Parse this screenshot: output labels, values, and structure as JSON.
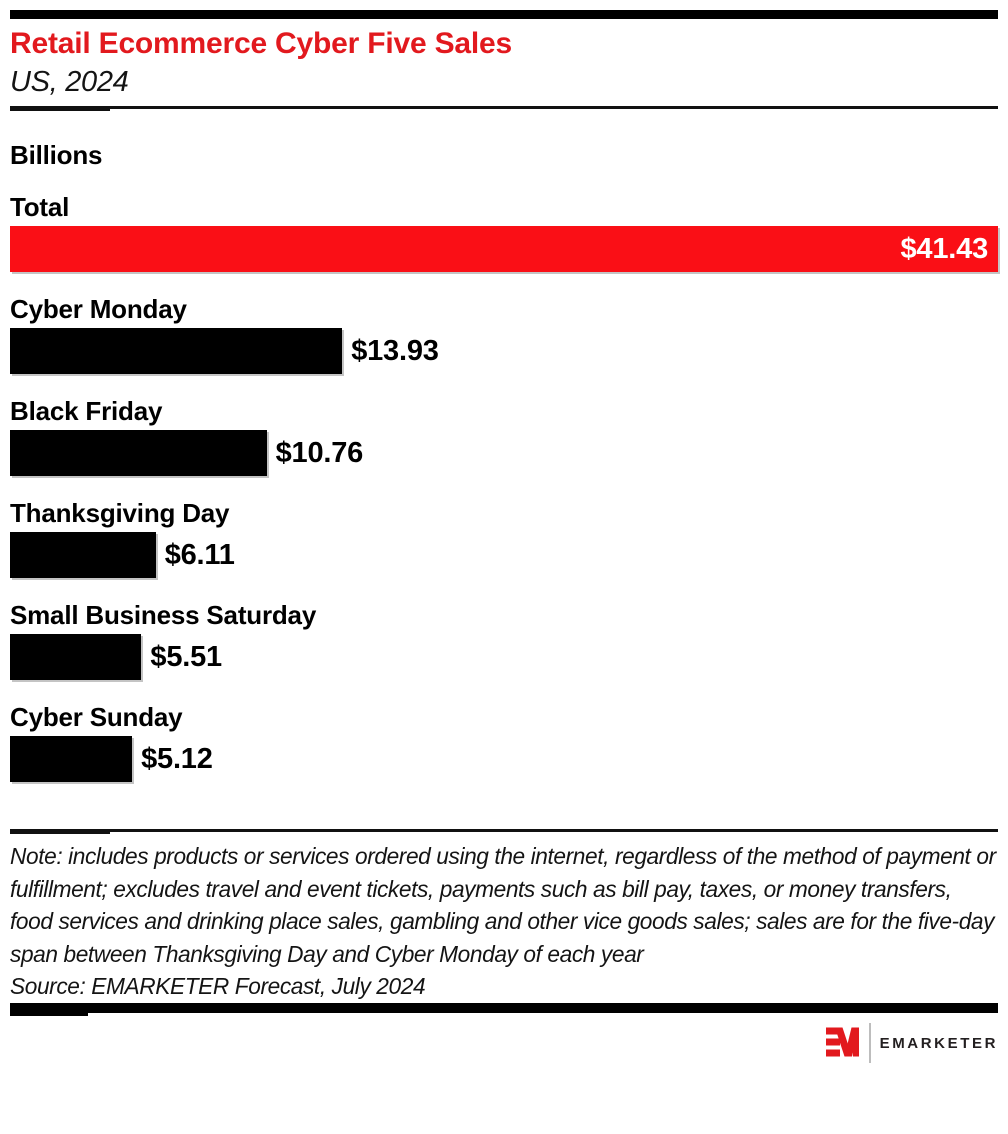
{
  "header": {
    "title": "Retail Ecommerce Cyber Five Sales",
    "subtitle": "US, 2024",
    "units_label": "Billions"
  },
  "colors": {
    "title_red": "#e2191e",
    "bar_red": "#fa0f16",
    "bar_black": "#000000"
  },
  "chart_data": {
    "type": "bar",
    "orientation": "horizontal",
    "title": "Retail Ecommerce Cyber Five Sales",
    "subtitle": "US, 2024",
    "units": "Billions",
    "xlim": [
      0,
      41.43
    ],
    "grid": false,
    "legend": false,
    "categories": [
      "Total",
      "Cyber Monday",
      "Black Friday",
      "Thanksgiving Day",
      "Small Business Saturday",
      "Cyber Sunday"
    ],
    "values": [
      41.43,
      13.93,
      10.76,
      6.11,
      5.51,
      5.12
    ],
    "value_labels": [
      "$41.43",
      "$13.93",
      "$10.76",
      "$6.11",
      "$5.51",
      "$5.12"
    ],
    "bar_colors": [
      "#fa0f16",
      "#000000",
      "#000000",
      "#000000",
      "#000000",
      "#000000"
    ],
    "value_label_placement": [
      "inside-right",
      "outside-right",
      "outside-right",
      "outside-right",
      "outside-right",
      "outside-right"
    ]
  },
  "footer": {
    "note": "Note: includes products or services ordered using the internet, regardless of the method of payment or fulfillment; excludes travel and event tickets, payments such as bill pay, taxes, or money transfers, food services and drinking place sales, gambling and other vice goods sales; sales are for the five-day span between Thanksgiving Day and Cyber Monday of each year",
    "source": "Source: EMARKETER Forecast, July 2024"
  },
  "logo": {
    "brand": "EMARKETER"
  }
}
